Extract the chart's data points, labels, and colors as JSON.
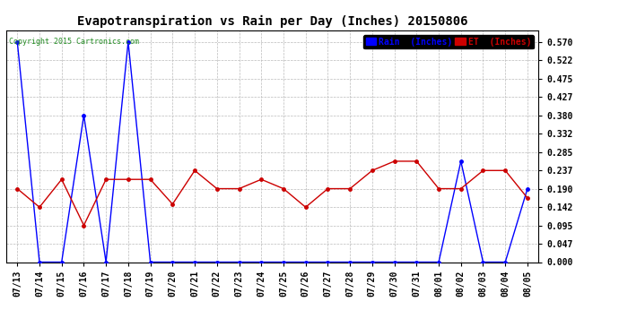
{
  "title": "Evapotranspiration vs Rain per Day (Inches) 20150806",
  "copyright": "Copyright 2015 Cartronics.com",
  "dates": [
    "07/13",
    "07/14",
    "07/15",
    "07/16",
    "07/17",
    "07/18",
    "07/19",
    "07/20",
    "07/21",
    "07/22",
    "07/23",
    "07/24",
    "07/25",
    "07/26",
    "07/27",
    "07/28",
    "07/29",
    "07/30",
    "07/31",
    "08/01",
    "08/02",
    "08/03",
    "08/04",
    "08/05"
  ],
  "rain": [
    0.57,
    0.0,
    0.0,
    0.38,
    0.0,
    0.57,
    0.0,
    0.0,
    0.0,
    0.0,
    0.0,
    0.0,
    0.0,
    0.0,
    0.0,
    0.0,
    0.0,
    0.0,
    0.0,
    0.0,
    0.261,
    0.0,
    0.0,
    0.19
  ],
  "et": [
    0.19,
    0.142,
    0.214,
    0.095,
    0.214,
    0.214,
    0.214,
    0.15,
    0.237,
    0.19,
    0.19,
    0.214,
    0.19,
    0.142,
    0.19,
    0.19,
    0.237,
    0.261,
    0.261,
    0.19,
    0.19,
    0.237,
    0.237,
    0.166
  ],
  "yticks": [
    0.0,
    0.047,
    0.095,
    0.142,
    0.19,
    0.237,
    0.285,
    0.332,
    0.38,
    0.427,
    0.475,
    0.522,
    0.57
  ],
  "ylim": [
    0.0,
    0.6
  ],
  "rain_color": "#0000ff",
  "et_color": "#cc0000",
  "background_color": "#ffffff",
  "grid_color": "#bbbbbb",
  "title_fontsize": 10,
  "tick_fontsize": 7,
  "copyright_fontsize": 6,
  "legend_rain_label": "Rain  (Inches)",
  "legend_et_label": "ET  (Inches)",
  "legend_fontsize": 7
}
